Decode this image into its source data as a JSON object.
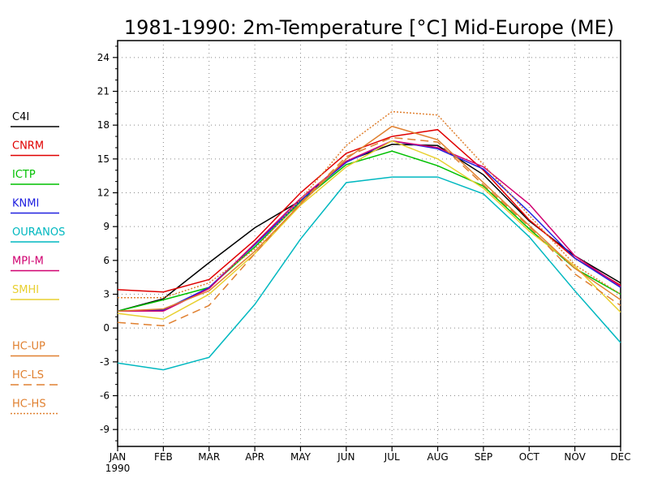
{
  "chart_data": {
    "type": "line",
    "title": "1981-1990: 2m-Temperature [°C] Mid-Europe (ME)",
    "categories": [
      "JAN",
      "FEB",
      "MAR",
      "APR",
      "MAY",
      "JUN",
      "JUL",
      "AUG",
      "SEP",
      "OCT",
      "NOV",
      "DEC"
    ],
    "x_sub_label": "1990",
    "ylim": [
      -10.5,
      25.5
    ],
    "yticks": [
      -9,
      -6,
      -3,
      0,
      3,
      6,
      9,
      12,
      15,
      18,
      21,
      24
    ],
    "grid": true,
    "legend_placement": "left",
    "series": [
      {
        "name": "C4I",
        "color": "#000000",
        "dash": "solid",
        "values": [
          1.5,
          2.6,
          5.8,
          8.9,
          11.3,
          14.8,
          16.3,
          16.2,
          13.6,
          9.5,
          6.4,
          4.0
        ]
      },
      {
        "name": "CNRM",
        "color": "#e00000",
        "dash": "solid",
        "values": [
          3.4,
          3.2,
          4.3,
          7.8,
          12.0,
          15.5,
          17.0,
          17.6,
          14.0,
          9.6,
          6.2,
          3.8
        ]
      },
      {
        "name": "ICTP",
        "color": "#00c000",
        "dash": "solid",
        "values": [
          1.5,
          2.5,
          3.6,
          7.2,
          11.2,
          14.5,
          15.7,
          14.4,
          12.6,
          8.8,
          5.3,
          3.0
        ]
      },
      {
        "name": "KNMI",
        "color": "#2020e0",
        "dash": "solid",
        "values": [
          1.5,
          1.6,
          3.6,
          7.4,
          11.3,
          14.7,
          16.6,
          15.9,
          14.1,
          10.3,
          6.2,
          3.6
        ]
      },
      {
        "name": "OURANOS",
        "color": "#00b8c0",
        "dash": "solid",
        "values": [
          -3.1,
          -3.7,
          -2.6,
          2.1,
          7.9,
          12.9,
          13.4,
          13.4,
          11.9,
          8.1,
          3.3,
          -1.3
        ]
      },
      {
        "name": "MPI-M",
        "color": "#d00070",
        "dash": "solid",
        "values": [
          1.5,
          1.5,
          3.5,
          7.5,
          11.5,
          14.8,
          16.6,
          16.0,
          14.3,
          11.0,
          6.4,
          3.7
        ]
      },
      {
        "name": "SMHI",
        "color": "#e8d030",
        "dash": "solid",
        "values": [
          1.3,
          0.8,
          3.0,
          6.6,
          10.9,
          14.3,
          16.6,
          15.0,
          12.4,
          8.6,
          5.5,
          1.4
        ]
      },
      {
        "name": "HC-UP",
        "color": "#e08030",
        "dash": "solid",
        "values": [
          1.5,
          1.7,
          3.3,
          6.8,
          11.0,
          15.0,
          17.9,
          16.7,
          12.9,
          9.1,
          5.3,
          2.5
        ]
      },
      {
        "name": "HC-LS",
        "color": "#e08030",
        "dash": "long",
        "values": [
          0.5,
          0.2,
          2.0,
          6.6,
          11.1,
          15.2,
          16.9,
          16.5,
          12.7,
          9.0,
          4.8,
          2.0
        ]
      },
      {
        "name": "HC-HS",
        "color": "#e08030",
        "dash": "short",
        "values": [
          2.7,
          2.7,
          4.0,
          7.0,
          11.4,
          16.2,
          19.2,
          18.9,
          14.5,
          10.0,
          5.6,
          3.0
        ]
      }
    ]
  }
}
